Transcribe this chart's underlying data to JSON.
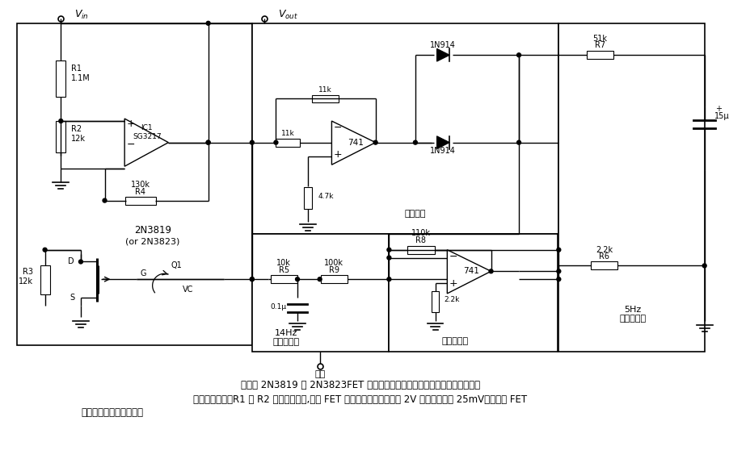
{
  "bg_color": "#ffffff",
  "line_color": "#000000",
  "caption_line1": "在这里 2N3819 或 2N3823FET 是作为一个保持信号宽范围的快反应仪表线路",
  "caption_line2": "的非线性元件。R1 和 R2 衰减输入信号,因此 FET 的输入在输入信号达到 2V 有效值时小于 25mV。增益与 FET",
  "caption_line3": "的栅压几乎是线性关系。"
}
